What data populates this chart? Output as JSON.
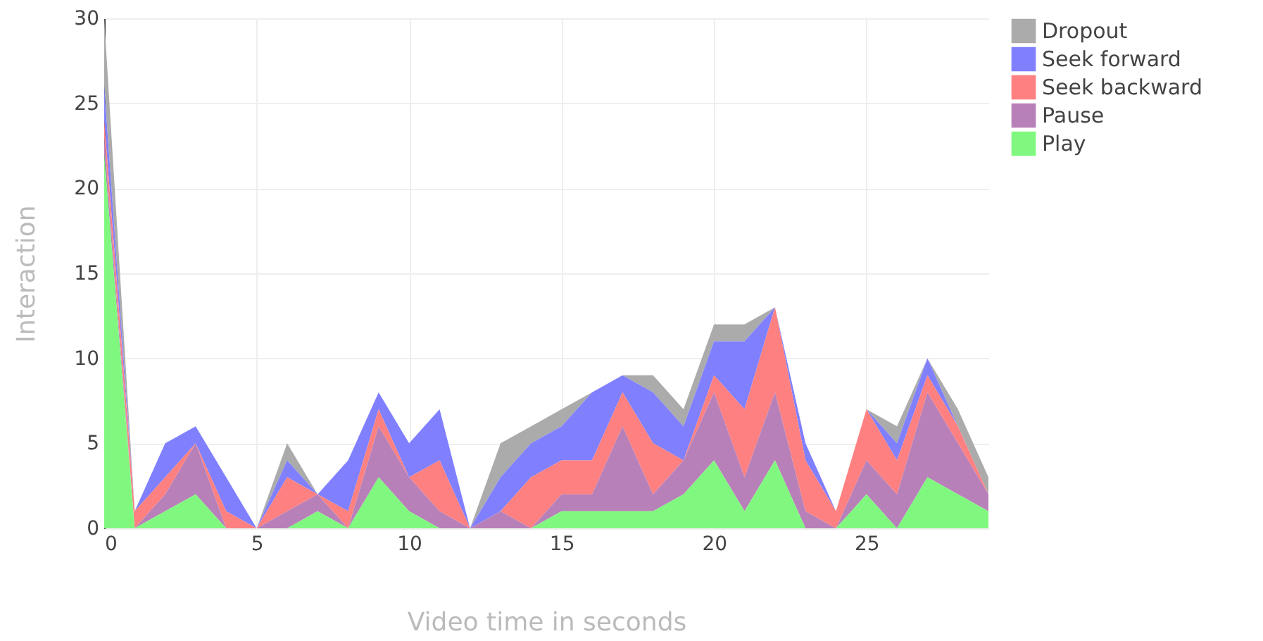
{
  "chart_data": {
    "type": "area",
    "stacked": true,
    "xlabel": "Video time in seconds",
    "ylabel": "Interaction",
    "x": [
      0,
      1,
      2,
      3,
      4,
      5,
      6,
      7,
      8,
      9,
      10,
      11,
      12,
      13,
      14,
      15,
      16,
      17,
      18,
      19,
      20,
      21,
      22,
      23,
      24,
      25,
      26,
      27,
      28,
      29
    ],
    "series": [
      {
        "name": "Play",
        "color": "#80f880",
        "values": [
          22,
          0,
          1,
          2,
          0,
          0,
          0,
          1,
          0,
          3,
          1,
          0,
          0,
          0,
          0,
          1,
          1,
          1,
          1,
          2,
          4,
          1,
          4,
          0,
          0,
          2,
          0,
          3,
          2,
          1
        ]
      },
      {
        "name": "Pause",
        "color": "#b880b8",
        "values": [
          1,
          0,
          1,
          3,
          0,
          0,
          1,
          1,
          0,
          3,
          2,
          1,
          0,
          1,
          0,
          1,
          1,
          5,
          1,
          2,
          4,
          2,
          4,
          1,
          0,
          2,
          2,
          5,
          3,
          1
        ]
      },
      {
        "name": "Seek backward",
        "color": "#ff8080",
        "values": [
          1,
          1,
          1,
          0,
          1,
          0,
          2,
          0,
          1,
          1,
          0,
          3,
          0,
          0,
          3,
          2,
          2,
          2,
          3,
          0,
          1,
          4,
          5,
          3,
          1,
          3,
          2,
          1,
          1,
          0
        ]
      },
      {
        "name": "Seek forward",
        "color": "#8080ff",
        "values": [
          2,
          0,
          2,
          1,
          2,
          0,
          1,
          0,
          3,
          1,
          2,
          3,
          0,
          2,
          2,
          2,
          4,
          1,
          3,
          2,
          2,
          4,
          0,
          1,
          0,
          0,
          1,
          1,
          0,
          0
        ]
      },
      {
        "name": "Dropout",
        "color": "#ababab",
        "values": [
          4,
          0,
          0,
          0,
          0,
          0,
          1,
          0,
          0,
          0,
          0,
          0,
          0,
          2,
          1,
          1,
          0,
          0,
          1,
          1,
          1,
          1,
          0,
          0,
          0,
          0,
          1,
          0,
          1,
          1
        ]
      }
    ],
    "xlim": [
      0,
      29
    ],
    "xticks": [
      0,
      5,
      10,
      15,
      20,
      25
    ],
    "ylim": [
      0,
      30
    ],
    "yticks": [
      0,
      5,
      10,
      15,
      20,
      25,
      30
    ],
    "grid": true,
    "legend": "top right"
  }
}
